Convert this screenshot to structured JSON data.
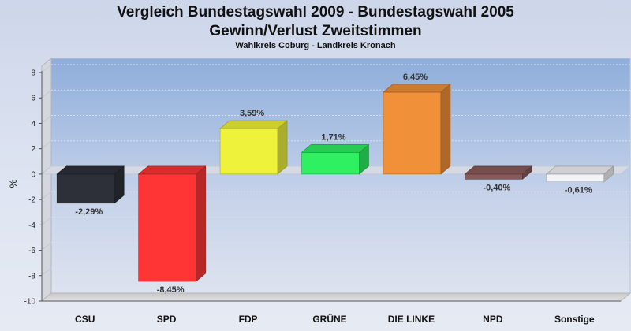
{
  "header": {
    "title_line1": "Vergleich Bundestagswahl 2009 - Bundestagswahl 2005",
    "title_line2": "Gewinn/Verlust Zweitstimmen",
    "subtitle": "Wahlkreis Coburg - Landkreis Kronach"
  },
  "chart_data": {
    "type": "bar",
    "title": "Vergleich Bundestagswahl 2009 - Bundestagswahl 2005 Gewinn/Verlust Zweitstimmen",
    "subtitle": "Wahlkreis Coburg - Landkreis Kronach",
    "xlabel": "",
    "ylabel": "%",
    "ylim": [
      -10,
      8
    ],
    "yticks": [
      8,
      6,
      4,
      2,
      0,
      -2,
      -4,
      -6,
      -8,
      -10
    ],
    "grid": true,
    "legend": "none",
    "categories": [
      "CSU",
      "SPD",
      "FDP",
      "GRÜNE",
      "DIE LINKE",
      "NPD",
      "Sonstige"
    ],
    "values": [
      -2.29,
      -8.45,
      3.59,
      1.71,
      6.45,
      -0.4,
      -0.61
    ],
    "data_labels": [
      "-2,29%",
      "-8,45%",
      "3,59%",
      "1,71%",
      "6,45%",
      "-0,40%",
      "-0,61%"
    ],
    "colors": [
      "#2d3038",
      "#ff3535",
      "#eef23a",
      "#2ef060",
      "#f0913a",
      "#8a5a5a",
      "#f4f4f8"
    ]
  }
}
